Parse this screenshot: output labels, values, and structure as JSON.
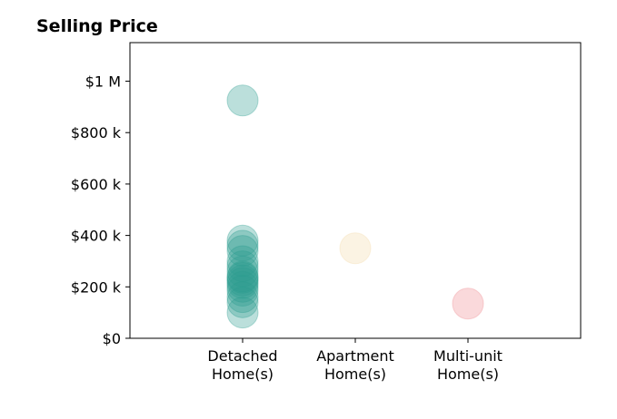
{
  "chart_data": {
    "type": "scatter",
    "title": "Selling Price",
    "xlabel": "",
    "ylabel": "",
    "categories": [
      [
        "Detached",
        "Home(s)"
      ],
      [
        "Apartment",
        "Home(s)"
      ],
      [
        "Multi-unit",
        "Home(s)"
      ]
    ],
    "x_range": [
      -1,
      3
    ],
    "ylim": [
      0,
      1150000
    ],
    "y_ticks": [
      0,
      200000,
      400000,
      600000,
      800000,
      1000000
    ],
    "y_tick_labels": [
      "$0",
      "$200 k",
      "$400 k",
      "$600 k",
      "$800 k",
      "$1 M"
    ],
    "grid": false,
    "series": [
      {
        "color": "#2a9d8f",
        "category_index": 0,
        "values": [
          925000,
          380000,
          360000,
          340000,
          300000,
          280000,
          260000,
          240000,
          235000,
          225000,
          215000,
          200000,
          185000,
          160000,
          140000,
          100000
        ]
      },
      {
        "color": "#f4d9a8",
        "category_index": 1,
        "values": [
          350000
        ]
      },
      {
        "color": "#ef8a8f",
        "category_index": 2,
        "values": [
          135000
        ]
      }
    ]
  }
}
